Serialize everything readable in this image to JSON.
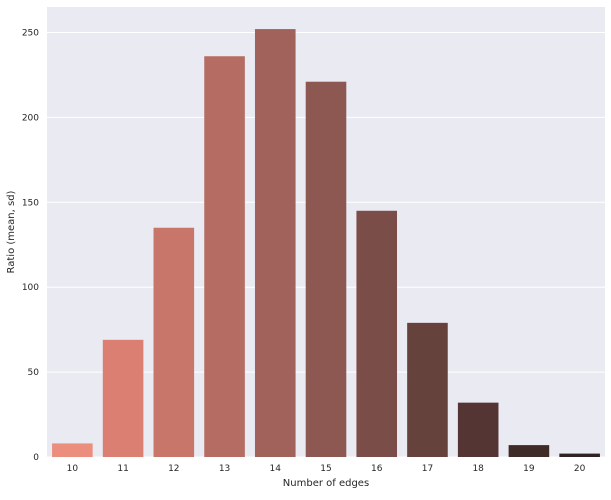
{
  "chart_data": {
    "type": "bar",
    "title": "",
    "xlabel": "Number of edges",
    "ylabel": "Ratio (mean, sd)",
    "categories": [
      "10",
      "11",
      "12",
      "13",
      "14",
      "15",
      "16",
      "17",
      "18",
      "19",
      "20"
    ],
    "values": [
      8,
      69,
      135,
      236,
      252,
      221,
      145,
      79,
      32,
      7,
      2
    ],
    "ylim": [
      0,
      265
    ],
    "yticks": [
      0,
      50,
      100,
      150,
      200,
      250
    ],
    "grid": "horizontal",
    "legend": "none",
    "colors": {
      "background": "#EAEAF2",
      "gridline": "#FFFFFF",
      "bars": [
        "#EB8E7D",
        "#DB7F73",
        "#C8756A",
        "#B46C63",
        "#A1625C",
        "#8D5852",
        "#7B4D49",
        "#65423C",
        "#543533",
        "#3F2A27",
        "#2F2220"
      ]
    }
  }
}
